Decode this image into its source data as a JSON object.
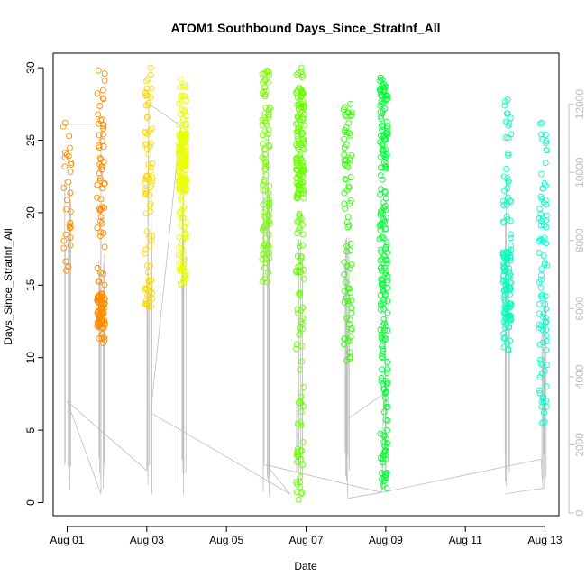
{
  "chart_data": {
    "type": "scatter",
    "title": "ATOM1 Southbound Days_Since_StratInf_All",
    "xlabel": "Date",
    "ylabel": "Days_Since_StratInf_All",
    "x_ticks": [
      "Aug 01",
      "Aug 03",
      "Aug 05",
      "Aug 07",
      "Aug 09",
      "Aug 11",
      "Aug 13"
    ],
    "x_tick_days": [
      1,
      3,
      5,
      7,
      9,
      11,
      13
    ],
    "xlim": [
      0.65,
      13.35
    ],
    "ylim": [
      -0.9,
      31.0
    ],
    "y_ticks": [
      0,
      5,
      10,
      15,
      20,
      25,
      30
    ],
    "right_axis": {
      "ticks": [
        0,
        2000,
        4000,
        6000,
        8000,
        10000,
        12000
      ],
      "range": [
        -80,
        13500
      ],
      "color": "#bebebe"
    },
    "line_color": "#bebebe",
    "series": [
      {
        "day": 1.0,
        "color": "#ff8c00",
        "y_low": 16.0,
        "y_high": 26.2,
        "n": 30
      },
      {
        "day": 1.85,
        "color": "#ff8c00",
        "y_low": 11.0,
        "y_high": 29.8,
        "n": 130,
        "dense": [
          12.0,
          14.5
        ]
      },
      {
        "day": 3.05,
        "color": "#ffd700",
        "y_low": 13.5,
        "y_high": 30.0,
        "n": 80
      },
      {
        "day": 3.9,
        "color": "#e8ff00",
        "y_low": 15.0,
        "y_high": 29.2,
        "n": 190,
        "dense": [
          21.5,
          25.5
        ]
      },
      {
        "day": 6.0,
        "color": "#77ff00",
        "y_low": 15.2,
        "y_high": 29.8,
        "n": 100
      },
      {
        "day": 6.85,
        "color": "#66ff00",
        "y_low": 0.2,
        "y_high": 30.0,
        "n": 200,
        "dense": [
          21.0,
          28.5
        ]
      },
      {
        "day": 8.05,
        "color": "#33ff00",
        "y_low": 9.8,
        "y_high": 27.5,
        "n": 80
      },
      {
        "day": 8.95,
        "color": "#00ff33",
        "y_low": 1.0,
        "y_high": 29.3,
        "n": 220
      },
      {
        "day": 12.05,
        "color": "#00ffbb",
        "y_low": 10.5,
        "y_high": 27.8,
        "n": 130,
        "dense": [
          12.0,
          17.5
        ]
      },
      {
        "day": 12.95,
        "color": "#00ffcc",
        "y_low": 5.5,
        "y_high": 26.2,
        "n": 90
      }
    ],
    "connector_path": [
      [
        1.0,
        26.1
      ],
      [
        1.85,
        26.1
      ],
      [
        1.85,
        0.6
      ],
      [
        1.0,
        7.0
      ],
      [
        3.0,
        2.2
      ],
      [
        3.05,
        27.5
      ],
      [
        3.85,
        26.0
      ],
      [
        3.1,
        6.2
      ],
      [
        6.6,
        0.6
      ],
      [
        6.0,
        2.6
      ],
      [
        8.9,
        0.7
      ],
      [
        8.05,
        0.3
      ],
      [
        8.0,
        5.7
      ],
      [
        8.95,
        7.5
      ],
      [
        8.9,
        0.7
      ],
      [
        12.9,
        3.0
      ],
      [
        12.95,
        1.0
      ],
      [
        12.0,
        0.6
      ]
    ]
  }
}
